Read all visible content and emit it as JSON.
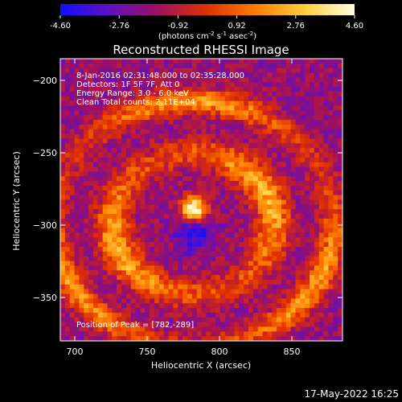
{
  "colorbar": {
    "ticks": [
      "-4.60",
      "-2.76",
      "-0.92",
      "0.92",
      "2.76",
      "4.60"
    ],
    "tick_values": [
      -4.6,
      -2.76,
      -0.92,
      0.92,
      2.76,
      4.6
    ],
    "range": [
      -4.6,
      4.6
    ],
    "unit_main": "(photons cm",
    "unit_exp1": "-2",
    "unit_s": " s",
    "unit_exp2": "-1",
    "unit_asec": " asec",
    "unit_exp3": "-2",
    "unit_close": ")",
    "colors": [
      "#1010ff",
      "#6010c0",
      "#a01060",
      "#e03000",
      "#ff8000",
      "#ffd040",
      "#ffffe0"
    ]
  },
  "chart_data": {
    "type": "heatmap",
    "title": "Reconstructed RHESSI Image",
    "xlabel": "Heliocentric X (arcsec)",
    "ylabel": "Heliocentric Y (arcsec)",
    "xlim": [
      690,
      885
    ],
    "ylim": [
      -380,
      -185
    ],
    "x_ticks": [
      700,
      750,
      800,
      850
    ],
    "y_ticks": [
      -200,
      -250,
      -300,
      -350
    ],
    "x_tick_labels": [
      "700",
      "750",
      "800",
      "850"
    ],
    "y_tick_labels": [
      "−200",
      "−250",
      "−300",
      "−350"
    ],
    "peak_position": [
      782,
      -289
    ],
    "annotations": {
      "time": "8-Jan-2016 02:31:48.000 to 02:35:28.000",
      "detectors": "Detectors: 1F 5F 7F, Att 0",
      "energy": "Energy Range: 3.0 - 6.0 keV",
      "clean": "Clean    Total counts: 2.11E+04",
      "peak": "Position of Peak = [782,-289]"
    }
  },
  "footer": {
    "date": "17-May-2022 16:25"
  }
}
